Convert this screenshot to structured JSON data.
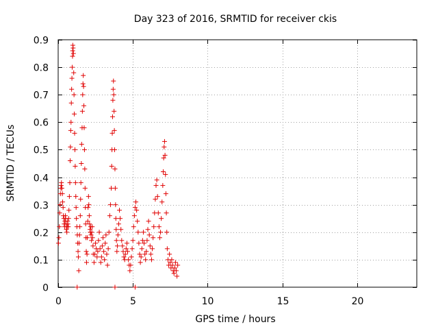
{
  "chart_data": {
    "type": "scatter",
    "title": "Day 323 of 2016, SRMTID for receiver ckis",
    "xlabel": "GPS time / hours",
    "ylabel": "SRMTID / TECUs",
    "xlim": [
      0,
      24
    ],
    "ylim": [
      0,
      0.9
    ],
    "xticks": [
      0,
      5,
      10,
      15,
      20
    ],
    "xtick_labels": [
      "0",
      "5",
      "10",
      "15",
      "20"
    ],
    "yticks": [
      0,
      0.1,
      0.2,
      0.3,
      0.4,
      0.5,
      0.6,
      0.7,
      0.8,
      0.9
    ],
    "ytick_labels": [
      "0",
      "0.1",
      "0.2",
      "0.3",
      "0.4",
      "0.5",
      "0.6",
      "0.7",
      "0.8",
      "0.9"
    ],
    "grid": true,
    "marker": "+",
    "series": [
      {
        "name": "SRMTID",
        "color": "#e00000",
        "points": [
          [
            0.02,
            0.16
          ],
          [
            0.05,
            0.18
          ],
          [
            0.08,
            0.22
          ],
          [
            0.1,
            0.27
          ],
          [
            0.13,
            0.3
          ],
          [
            0.15,
            0.34
          ],
          [
            0.18,
            0.36
          ],
          [
            0.2,
            0.37
          ],
          [
            0.22,
            0.38
          ],
          [
            0.25,
            0.36
          ],
          [
            0.28,
            0.34
          ],
          [
            0.3,
            0.31
          ],
          [
            0.33,
            0.29
          ],
          [
            0.35,
            0.26
          ],
          [
            0.38,
            0.25
          ],
          [
            0.4,
            0.23
          ],
          [
            0.43,
            0.22
          ],
          [
            0.45,
            0.24
          ],
          [
            0.48,
            0.26
          ],
          [
            0.5,
            0.25
          ],
          [
            0.53,
            0.23
          ],
          [
            0.55,
            0.21
          ],
          [
            0.58,
            0.2
          ],
          [
            0.6,
            0.22
          ],
          [
            0.63,
            0.24
          ],
          [
            0.65,
            0.23
          ],
          [
            0.68,
            0.22
          ],
          [
            0.7,
            0.25
          ],
          [
            0.72,
            0.28
          ],
          [
            0.75,
            0.33
          ],
          [
            0.78,
            0.38
          ],
          [
            0.8,
            0.46
          ],
          [
            0.82,
            0.51
          ],
          [
            0.84,
            0.57
          ],
          [
            0.86,
            0.6
          ],
          [
            0.88,
            0.67
          ],
          [
            0.9,
            0.72
          ],
          [
            0.92,
            0.76
          ],
          [
            0.94,
            0.8
          ],
          [
            0.96,
            0.84
          ],
          [
            0.97,
            0.86
          ],
          [
            0.98,
            0.88
          ],
          [
            1.0,
            0.87
          ],
          [
            1.02,
            0.85
          ],
          [
            1.04,
            0.78
          ],
          [
            1.06,
            0.7
          ],
          [
            1.08,
            0.63
          ],
          [
            1.1,
            0.56
          ],
          [
            1.12,
            0.5
          ],
          [
            1.14,
            0.44
          ],
          [
            1.16,
            0.38
          ],
          [
            1.18,
            0.33
          ],
          [
            1.2,
            0.29
          ],
          [
            1.22,
            0.25
          ],
          [
            1.25,
            0.22
          ],
          [
            1.28,
            0.19
          ],
          [
            1.3,
            0.16
          ],
          [
            1.33,
            0.13
          ],
          [
            1.35,
            0.11
          ],
          [
            1.38,
            0.06
          ],
          [
            1.4,
            0.16
          ],
          [
            1.43,
            0.19
          ],
          [
            1.45,
            0.22
          ],
          [
            1.48,
            0.26
          ],
          [
            1.5,
            0.32
          ],
          [
            1.52,
            0.38
          ],
          [
            1.55,
            0.45
          ],
          [
            1.57,
            0.52
          ],
          [
            1.6,
            0.58
          ],
          [
            1.62,
            0.64
          ],
          [
            1.64,
            0.7
          ],
          [
            1.66,
            0.74
          ],
          [
            1.68,
            0.77
          ],
          [
            1.7,
            0.73
          ],
          [
            1.72,
            0.66
          ],
          [
            1.74,
            0.58
          ],
          [
            1.76,
            0.5
          ],
          [
            1.78,
            0.43
          ],
          [
            1.8,
            0.36
          ],
          [
            1.82,
            0.29
          ],
          [
            1.84,
            0.23
          ],
          [
            1.86,
            0.18
          ],
          [
            1.88,
            0.13
          ],
          [
            1.9,
            0.09
          ],
          [
            1.93,
            0.12
          ],
          [
            1.95,
            0.18
          ],
          [
            1.98,
            0.24
          ],
          [
            2.0,
            0.29
          ],
          [
            2.03,
            0.33
          ],
          [
            2.05,
            0.3
          ],
          [
            2.08,
            0.26
          ],
          [
            2.1,
            0.23
          ],
          [
            2.13,
            0.21
          ],
          [
            2.15,
            0.2
          ],
          [
            2.18,
            0.22
          ],
          [
            2.2,
            0.19
          ],
          [
            2.23,
            0.17
          ],
          [
            2.25,
            0.2
          ],
          [
            2.28,
            0.22
          ],
          [
            2.3,
            0.18
          ],
          [
            2.33,
            0.15
          ],
          [
            2.35,
            0.12
          ],
          [
            2.4,
            0.09
          ],
          [
            2.45,
            0.12
          ],
          [
            2.5,
            0.16
          ],
          [
            2.55,
            0.14
          ],
          [
            2.6,
            0.11
          ],
          [
            2.65,
            0.13
          ],
          [
            2.7,
            0.17
          ],
          [
            2.75,
            0.2
          ],
          [
            2.8,
            0.14
          ],
          [
            2.85,
            0.09
          ],
          [
            2.9,
            0.11
          ],
          [
            2.95,
            0.15
          ],
          [
            3.0,
            0.18
          ],
          [
            3.05,
            0.13
          ],
          [
            3.1,
            0.1
          ],
          [
            3.15,
            0.16
          ],
          [
            3.2,
            0.19
          ],
          [
            3.25,
            0.12
          ],
          [
            3.3,
            0.08
          ],
          [
            3.35,
            0.14
          ],
          [
            3.4,
            0.2
          ],
          [
            3.45,
            0.26
          ],
          [
            3.5,
            0.3
          ],
          [
            3.55,
            0.36
          ],
          [
            3.58,
            0.44
          ],
          [
            3.6,
            0.5
          ],
          [
            3.62,
            0.56
          ],
          [
            3.64,
            0.62
          ],
          [
            3.66,
            0.68
          ],
          [
            3.68,
            0.72
          ],
          [
            3.7,
            0.75
          ],
          [
            3.72,
            0.7
          ],
          [
            3.74,
            0.64
          ],
          [
            3.76,
            0.57
          ],
          [
            3.78,
            0.5
          ],
          [
            3.8,
            0.43
          ],
          [
            3.82,
            0.36
          ],
          [
            3.84,
            0.3
          ],
          [
            3.86,
            0.25
          ],
          [
            3.88,
            0.21
          ],
          [
            3.9,
            0.17
          ],
          [
            3.93,
            0.13
          ],
          [
            3.96,
            0.15
          ],
          [
            4.0,
            0.19
          ],
          [
            4.05,
            0.23
          ],
          [
            4.1,
            0.28
          ],
          [
            4.15,
            0.25
          ],
          [
            4.2,
            0.21
          ],
          [
            4.25,
            0.17
          ],
          [
            4.3,
            0.15
          ],
          [
            4.35,
            0.13
          ],
          [
            4.4,
            0.11
          ],
          [
            4.45,
            0.1
          ],
          [
            4.5,
            0.12
          ],
          [
            4.55,
            0.14
          ],
          [
            4.6,
            0.16
          ],
          [
            4.65,
            0.13
          ],
          [
            4.7,
            0.1
          ],
          [
            4.75,
            0.08
          ],
          [
            4.8,
            0.06
          ],
          [
            4.85,
            0.08
          ],
          [
            4.9,
            0.11
          ],
          [
            4.95,
            0.14
          ],
          [
            5.0,
            0.17
          ],
          [
            5.05,
            0.22
          ],
          [
            5.1,
            0.26
          ],
          [
            5.15,
            0.29
          ],
          [
            5.2,
            0.31
          ],
          [
            5.25,
            0.28
          ],
          [
            5.3,
            0.24
          ],
          [
            5.35,
            0.2
          ],
          [
            5.4,
            0.16
          ],
          [
            5.45,
            0.12
          ],
          [
            5.5,
            0.09
          ],
          [
            5.55,
            0.11
          ],
          [
            5.6,
            0.14
          ],
          [
            5.65,
            0.17
          ],
          [
            5.7,
            0.2
          ],
          [
            5.75,
            0.16
          ],
          [
            5.8,
            0.12
          ],
          [
            5.85,
            0.1
          ],
          [
            5.9,
            0.13
          ],
          [
            5.95,
            0.17
          ],
          [
            6.0,
            0.21
          ],
          [
            6.05,
            0.24
          ],
          [
            6.1,
            0.19
          ],
          [
            6.15,
            0.15
          ],
          [
            6.2,
            0.12
          ],
          [
            6.25,
            0.1
          ],
          [
            6.3,
            0.14
          ],
          [
            6.35,
            0.18
          ],
          [
            6.4,
            0.22
          ],
          [
            6.45,
            0.27
          ],
          [
            6.5,
            0.32
          ],
          [
            6.55,
            0.37
          ],
          [
            6.6,
            0.39
          ],
          [
            6.65,
            0.33
          ],
          [
            6.7,
            0.27
          ],
          [
            6.75,
            0.22
          ],
          [
            6.8,
            0.18
          ],
          [
            6.85,
            0.2
          ],
          [
            6.9,
            0.25
          ],
          [
            6.95,
            0.31
          ],
          [
            7.0,
            0.37
          ],
          [
            7.03,
            0.42
          ],
          [
            7.06,
            0.47
          ],
          [
            7.09,
            0.51
          ],
          [
            7.12,
            0.53
          ],
          [
            7.15,
            0.48
          ],
          [
            7.18,
            0.41
          ],
          [
            7.21,
            0.34
          ],
          [
            7.24,
            0.27
          ],
          [
            7.27,
            0.2
          ],
          [
            7.3,
            0.14
          ],
          [
            7.35,
            0.1
          ],
          [
            7.4,
            0.08
          ],
          [
            7.45,
            0.12
          ],
          [
            7.5,
            0.09
          ],
          [
            7.55,
            0.07
          ],
          [
            7.6,
            0.1
          ],
          [
            7.65,
            0.08
          ],
          [
            7.7,
            0.06
          ],
          [
            7.75,
            0.05
          ],
          [
            7.8,
            0.07
          ],
          [
            7.85,
            0.09
          ],
          [
            7.9,
            0.06
          ],
          [
            7.95,
            0.04
          ],
          [
            8.0,
            0.08
          ],
          [
            1.27,
            0.0
          ],
          [
            3.8,
            0.0
          ],
          [
            5.15,
            0.0
          ]
        ]
      }
    ]
  }
}
